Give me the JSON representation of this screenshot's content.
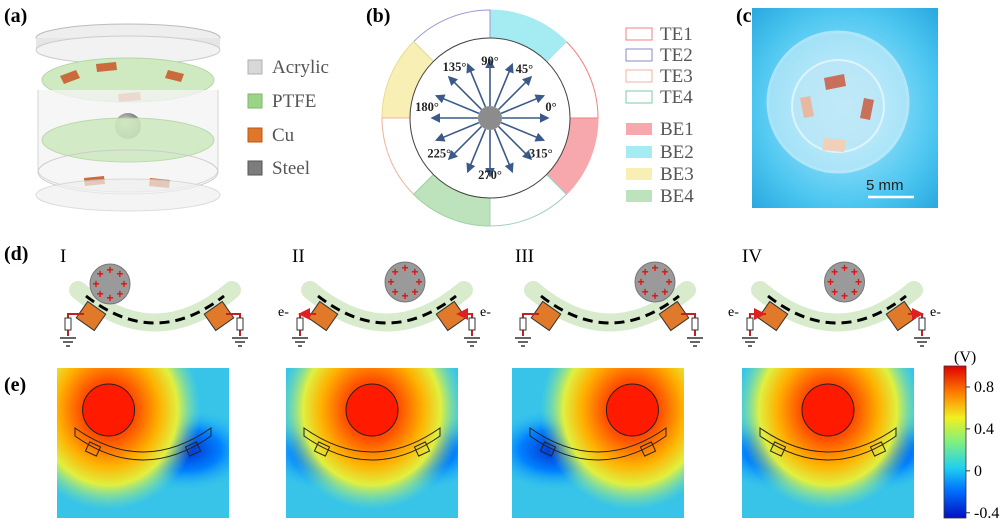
{
  "panels": {
    "a": {
      "label": "(a)",
      "legend": [
        {
          "name": "Acrylic",
          "color": "#d4d4d4"
        },
        {
          "name": "PTFE",
          "color": "#8fd07a"
        },
        {
          "name": "Cu",
          "color": "#e0762a"
        },
        {
          "name": "Steel",
          "color": "#7c7c7c"
        }
      ]
    },
    "b": {
      "label": "(b)",
      "angles": [
        "90°",
        "45°",
        "0°",
        "315°",
        "270°",
        "225°",
        "180°",
        "135°"
      ],
      "top_electrodes": [
        {
          "name": "TE1",
          "color": "#f08080"
        },
        {
          "name": "TE2",
          "color": "#8a8ad0"
        },
        {
          "name": "TE3",
          "color": "#f0b0a0"
        },
        {
          "name": "TE4",
          "color": "#7fc9a0"
        }
      ],
      "bottom_electrodes": [
        {
          "name": "BE1",
          "color": "#f7a8ad"
        },
        {
          "name": "BE2",
          "color": "#a4ecf2"
        },
        {
          "name": "BE3",
          "color": "#f8efb5"
        },
        {
          "name": "BE4",
          "color": "#bde3bd"
        }
      ]
    },
    "c": {
      "label": "(c)",
      "scale_bar": "5 mm"
    },
    "d": {
      "label": "(d)",
      "stages": [
        "I",
        "II",
        "III",
        "IV"
      ],
      "electron": "e-"
    },
    "e": {
      "label": "(e)",
      "colorbar": {
        "unit": "(V)",
        "ticks": [
          "0.8",
          "0.4",
          "0",
          "-0.4"
        ],
        "range": [
          -0.45,
          1.0
        ]
      }
    }
  }
}
